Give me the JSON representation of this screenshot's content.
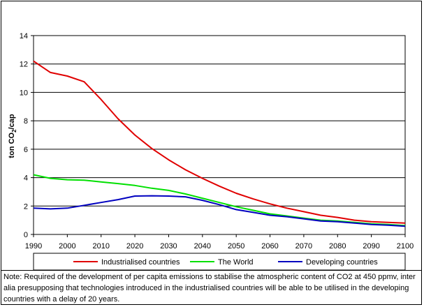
{
  "chart_data": {
    "type": "line",
    "ylabel": "ton CO2/cap",
    "xlim": [
      1990,
      2100
    ],
    "ylim": [
      0,
      14
    ],
    "y_ticks": [
      "0",
      "2",
      "4",
      "6",
      "8",
      "10",
      "12",
      "14"
    ],
    "x_ticks": [
      "1990",
      "2000",
      "2010",
      "2020",
      "2030",
      "2040",
      "2050",
      "2060",
      "2070",
      "2080",
      "2090",
      "2100"
    ],
    "grid": "horizontal",
    "legend_position": "bottom",
    "series": [
      {
        "name": "Industrialised countries",
        "color": "#e00000",
        "points": [
          [
            1990,
            12.2
          ],
          [
            1995,
            11.4
          ],
          [
            2000,
            11.15
          ],
          [
            2005,
            10.75
          ],
          [
            2010,
            9.5
          ],
          [
            2015,
            8.15
          ],
          [
            2020,
            7.0
          ],
          [
            2025,
            6.05
          ],
          [
            2030,
            5.25
          ],
          [
            2035,
            4.55
          ],
          [
            2040,
            3.95
          ],
          [
            2045,
            3.4
          ],
          [
            2050,
            2.9
          ],
          [
            2055,
            2.5
          ],
          [
            2060,
            2.15
          ],
          [
            2065,
            1.85
          ],
          [
            2070,
            1.6
          ],
          [
            2075,
            1.35
          ],
          [
            2080,
            1.2
          ],
          [
            2085,
            1.0
          ],
          [
            2090,
            0.9
          ],
          [
            2095,
            0.85
          ],
          [
            2100,
            0.8
          ]
        ]
      },
      {
        "name": "The World",
        "color": "#00e000",
        "points": [
          [
            1990,
            4.2
          ],
          [
            1995,
            3.95
          ],
          [
            2000,
            3.85
          ],
          [
            2005,
            3.82
          ],
          [
            2010,
            3.7
          ],
          [
            2015,
            3.58
          ],
          [
            2020,
            3.45
          ],
          [
            2025,
            3.25
          ],
          [
            2030,
            3.1
          ],
          [
            2035,
            2.85
          ],
          [
            2040,
            2.55
          ],
          [
            2045,
            2.25
          ],
          [
            2050,
            1.95
          ],
          [
            2055,
            1.7
          ],
          [
            2060,
            1.45
          ],
          [
            2065,
            1.3
          ],
          [
            2070,
            1.15
          ],
          [
            2075,
            1.0
          ],
          [
            2080,
            0.95
          ],
          [
            2085,
            0.85
          ],
          [
            2090,
            0.75
          ],
          [
            2095,
            0.7
          ],
          [
            2100,
            0.62
          ]
        ]
      },
      {
        "name": "Developing countries",
        "color": "#0000c0",
        "points": [
          [
            1990,
            1.85
          ],
          [
            1995,
            1.8
          ],
          [
            2000,
            1.85
          ],
          [
            2005,
            2.05
          ],
          [
            2010,
            2.25
          ],
          [
            2015,
            2.45
          ],
          [
            2020,
            2.7
          ],
          [
            2025,
            2.72
          ],
          [
            2030,
            2.7
          ],
          [
            2035,
            2.65
          ],
          [
            2040,
            2.4
          ],
          [
            2045,
            2.1
          ],
          [
            2050,
            1.75
          ],
          [
            2055,
            1.55
          ],
          [
            2060,
            1.35
          ],
          [
            2065,
            1.25
          ],
          [
            2070,
            1.1
          ],
          [
            2075,
            0.95
          ],
          [
            2080,
            0.9
          ],
          [
            2085,
            0.8
          ],
          [
            2090,
            0.7
          ],
          [
            2095,
            0.65
          ],
          [
            2100,
            0.58
          ]
        ]
      }
    ]
  },
  "note": "Note: Required of the development of per capita emissions to stabilise the atmospheric content of CO2 at 450 ppmv, inter alia presupposing that technologies introduced in the industrialised countries will be able to be utilised in the developing countries with a delay of 20 years."
}
